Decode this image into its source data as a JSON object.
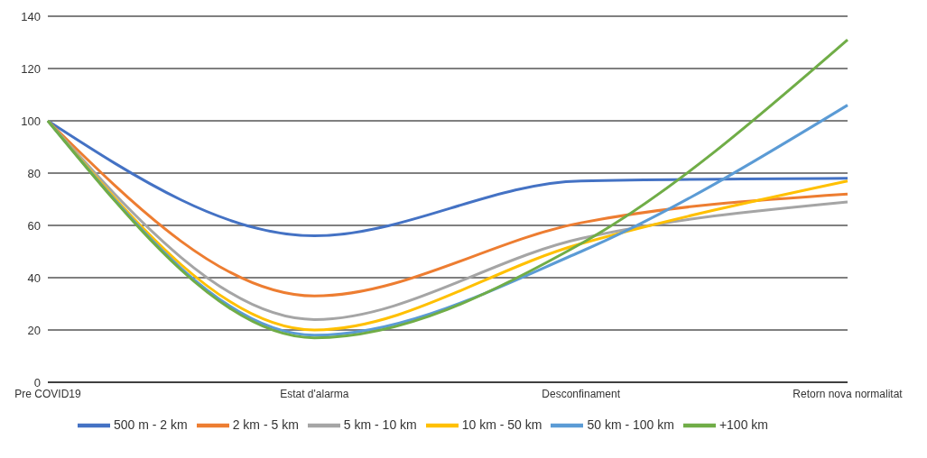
{
  "chart_data": {
    "type": "line",
    "categories": [
      "Pre COVID19",
      "Estat d'alarma",
      "Desconfinament",
      "Retorn nova normalitat"
    ],
    "series": [
      {
        "name": "500 m - 2 km",
        "color": "#4472c4",
        "values": [
          100,
          56,
          77,
          78
        ]
      },
      {
        "name": "2 km - 5 km",
        "color": "#ed7d31",
        "values": [
          100,
          33,
          61,
          72
        ]
      },
      {
        "name": "5 km - 10 km",
        "color": "#a5a5a5",
        "values": [
          100,
          24,
          55,
          69
        ]
      },
      {
        "name": "10 km - 50 km",
        "color": "#ffc000",
        "values": [
          100,
          20,
          53,
          77
        ]
      },
      {
        "name": "50 km - 100 km",
        "color": "#5b9bd5",
        "values": [
          100,
          18,
          50,
          106
        ]
      },
      {
        "name": "+100 km",
        "color": "#70ad47",
        "values": [
          100,
          17,
          53,
          131
        ]
      }
    ],
    "ylim": [
      0,
      140
    ],
    "yticks": [
      0,
      20,
      40,
      60,
      80,
      100,
      120,
      140
    ],
    "grid": "y",
    "legend": "bottom",
    "marker": "none",
    "line_style": "solid"
  }
}
